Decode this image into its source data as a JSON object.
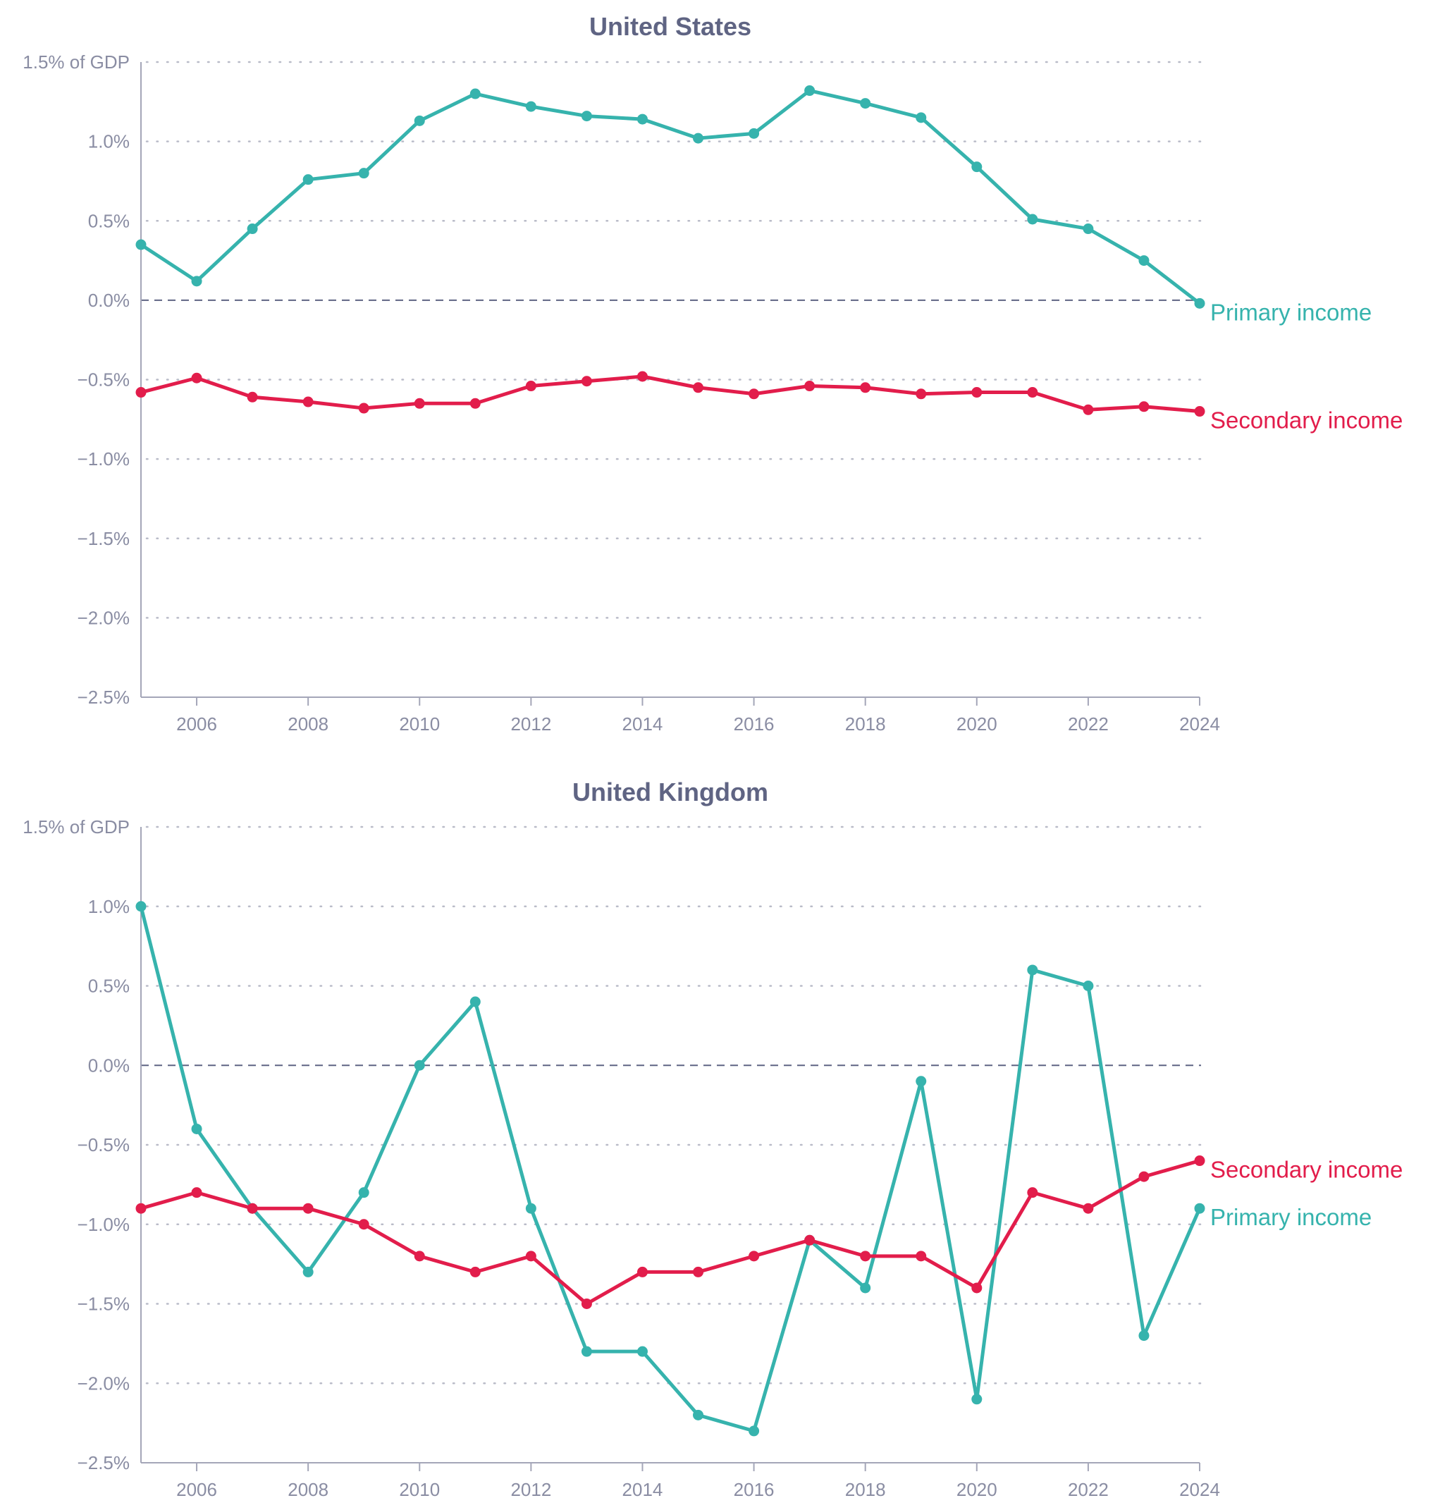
{
  "colors": {
    "primary": "#36b3ad",
    "secondary": "#e21d4b"
  },
  "chart_data": [
    {
      "type": "line",
      "title": "United States",
      "x": [
        2005,
        2006,
        2007,
        2008,
        2009,
        2010,
        2011,
        2012,
        2013,
        2014,
        2015,
        2016,
        2017,
        2018,
        2019,
        2020,
        2021,
        2022,
        2023,
        2024
      ],
      "xticks": [
        "2006",
        "2008",
        "2010",
        "2012",
        "2014",
        "2016",
        "2018",
        "2020",
        "2022",
        "2024"
      ],
      "ylim": [
        -2.5,
        1.5
      ],
      "yticks": [
        "1.5% of GDP",
        "1.0%",
        "0.5%",
        "0.0%",
        "−0.5%",
        "−1.0%",
        "−1.5%",
        "−2.0%",
        "−2.5%"
      ],
      "grid": true,
      "series": [
        {
          "name": "Primary income",
          "color": "#36b3ad",
          "values": [
            0.35,
            0.12,
            0.45,
            0.76,
            0.8,
            1.13,
            1.3,
            1.22,
            1.16,
            1.14,
            1.02,
            1.05,
            1.32,
            1.24,
            1.15,
            0.84,
            0.51,
            0.45,
            0.25,
            -0.02
          ]
        },
        {
          "name": "Secondary income",
          "color": "#e21d4b",
          "values": [
            -0.58,
            -0.49,
            -0.61,
            -0.64,
            -0.68,
            -0.65,
            -0.65,
            -0.54,
            -0.51,
            -0.48,
            -0.55,
            -0.59,
            -0.54,
            -0.55,
            -0.59,
            -0.58,
            -0.58,
            -0.69,
            -0.67,
            -0.7
          ]
        }
      ]
    },
    {
      "type": "line",
      "title": "United Kingdom",
      "x": [
        2005,
        2006,
        2007,
        2008,
        2009,
        2010,
        2011,
        2012,
        2013,
        2014,
        2015,
        2016,
        2017,
        2018,
        2019,
        2020,
        2021,
        2022,
        2023,
        2024
      ],
      "xticks": [
        "2006",
        "2008",
        "2010",
        "2012",
        "2014",
        "2016",
        "2018",
        "2020",
        "2022",
        "2024"
      ],
      "ylim": [
        -2.5,
        1.5
      ],
      "yticks": [
        "1.5% of GDP",
        "1.0%",
        "0.5%",
        "0.0%",
        "−0.5%",
        "−1.0%",
        "−1.5%",
        "−2.0%",
        "−2.5%"
      ],
      "grid": true,
      "series": [
        {
          "name": "Primary income",
          "color": "#36b3ad",
          "values": [
            1.0,
            -0.4,
            -0.9,
            -1.3,
            -0.8,
            0.0,
            0.4,
            -0.9,
            -1.8,
            -1.8,
            -2.2,
            -2.3,
            -1.1,
            -1.4,
            -0.1,
            -2.1,
            0.6,
            0.5,
            -1.7,
            -0.9
          ]
        },
        {
          "name": "Secondary income",
          "color": "#e21d4b",
          "values": [
            -0.9,
            -0.8,
            -0.9,
            -0.9,
            -1.0,
            -1.2,
            -1.3,
            -1.2,
            -1.5,
            -1.3,
            -1.3,
            -1.2,
            -1.1,
            -1.2,
            -1.2,
            -1.4,
            -0.8,
            -0.9,
            -0.7,
            -0.6
          ]
        }
      ]
    }
  ]
}
